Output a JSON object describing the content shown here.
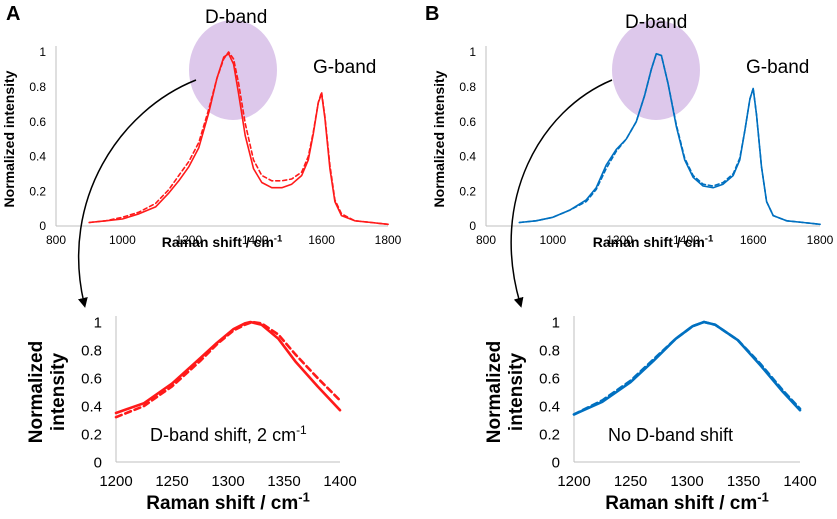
{
  "figure": {
    "panel_labels": [
      "A",
      "B"
    ],
    "colors": {
      "red": "#ff1a1a",
      "blue": "#0070c0",
      "highlight": "#d9c2e9"
    }
  },
  "chart_data": [
    {
      "id": "A-main",
      "type": "line",
      "title": "",
      "xlabel": "Raman shift / cm",
      "xlabel_sup": "-1",
      "ylabel": "Normalized intensity",
      "xlim": [
        800,
        1800
      ],
      "ylim": [
        0,
        1
      ],
      "xticks": [
        800,
        1000,
        1200,
        1400,
        1600,
        1800
      ],
      "yticks": [
        0,
        0.2,
        0.4,
        0.6,
        0.8,
        1
      ],
      "ytick_labels": [
        "0",
        "0.2",
        "0.4",
        "0.6",
        "0.8",
        "1"
      ],
      "grid": false,
      "annotations": {
        "d_band": "D-band",
        "g_band": "G-band"
      },
      "series": [
        {
          "name": "solid",
          "style": "solid",
          "x": [
            900,
            950,
            1000,
            1050,
            1100,
            1140,
            1170,
            1200,
            1230,
            1260,
            1285,
            1305,
            1320,
            1335,
            1350,
            1370,
            1395,
            1420,
            1450,
            1480,
            1510,
            1540,
            1560,
            1575,
            1590,
            1600,
            1610,
            1625,
            1640,
            1660,
            1700,
            1750,
            1800
          ],
          "y": [
            0.02,
            0.03,
            0.04,
            0.07,
            0.11,
            0.19,
            0.26,
            0.34,
            0.45,
            0.65,
            0.85,
            0.97,
            0.99,
            0.93,
            0.76,
            0.52,
            0.33,
            0.25,
            0.22,
            0.22,
            0.24,
            0.29,
            0.38,
            0.53,
            0.71,
            0.76,
            0.62,
            0.33,
            0.14,
            0.06,
            0.03,
            0.02,
            0.01
          ]
        },
        {
          "name": "dashed",
          "style": "dashed",
          "x": [
            900,
            950,
            1000,
            1050,
            1100,
            1140,
            1170,
            1200,
            1230,
            1260,
            1285,
            1305,
            1320,
            1335,
            1350,
            1370,
            1395,
            1420,
            1450,
            1480,
            1510,
            1540,
            1560,
            1575,
            1590,
            1600,
            1610,
            1625,
            1640,
            1660,
            1700,
            1750,
            1800
          ],
          "y": [
            0.02,
            0.03,
            0.05,
            0.08,
            0.13,
            0.21,
            0.29,
            0.37,
            0.48,
            0.67,
            0.85,
            0.96,
            1.0,
            0.96,
            0.82,
            0.59,
            0.38,
            0.29,
            0.26,
            0.26,
            0.27,
            0.31,
            0.4,
            0.54,
            0.71,
            0.77,
            0.63,
            0.35,
            0.15,
            0.07,
            0.03,
            0.02,
            0.01
          ]
        }
      ]
    },
    {
      "id": "A-inset",
      "type": "line",
      "title": "",
      "xlabel": "Raman shift / cm",
      "xlabel_sup": "-1",
      "ylabel": "Normalized intensity",
      "ylabel_lines": [
        "Normalized",
        "intensity"
      ],
      "xlim": [
        1200,
        1400
      ],
      "ylim": [
        0,
        1
      ],
      "xticks": [
        1200,
        1250,
        1300,
        1350,
        1400
      ],
      "yticks": [
        0,
        0.2,
        0.4,
        0.6,
        0.8,
        1
      ],
      "ytick_labels": [
        "0",
        "0.2",
        "0.4",
        "0.6",
        "0.8",
        "1"
      ],
      "grid": false,
      "annotation": "D-band shift, 2 cm",
      "annotation_sup": "-1",
      "series": [
        {
          "name": "solid",
          "style": "solid",
          "x": [
            1200,
            1225,
            1250,
            1275,
            1290,
            1305,
            1315,
            1320,
            1330,
            1345,
            1360,
            1380,
            1400
          ],
          "y": [
            0.35,
            0.42,
            0.56,
            0.74,
            0.85,
            0.95,
            0.99,
            1.0,
            0.98,
            0.88,
            0.72,
            0.54,
            0.37
          ]
        },
        {
          "name": "dashed",
          "style": "dashed",
          "x": [
            1200,
            1225,
            1250,
            1275,
            1290,
            1305,
            1315,
            1322,
            1330,
            1345,
            1360,
            1380,
            1400
          ],
          "y": [
            0.32,
            0.4,
            0.54,
            0.72,
            0.84,
            0.94,
            0.98,
            1.0,
            0.99,
            0.91,
            0.77,
            0.6,
            0.44
          ]
        }
      ]
    },
    {
      "id": "B-main",
      "type": "line",
      "title": "",
      "xlabel": "Raman shift / cm",
      "xlabel_sup": "-1",
      "ylabel": "Normalized intensity",
      "xlim": [
        800,
        1800
      ],
      "ylim": [
        0,
        1
      ],
      "xticks": [
        800,
        1000,
        1200,
        1400,
        1600,
        1800
      ],
      "yticks": [
        0,
        0.2,
        0.4,
        0.6,
        0.8,
        1
      ],
      "ytick_labels": [
        "0",
        "0.2",
        "0.4",
        "0.6",
        "0.8",
        "1"
      ],
      "grid": false,
      "annotations": {
        "d_band": "D-band",
        "g_band": "G-band"
      },
      "series": [
        {
          "name": "solid",
          "style": "solid",
          "x": [
            900,
            950,
            1000,
            1050,
            1100,
            1130,
            1160,
            1190,
            1220,
            1250,
            1275,
            1295,
            1310,
            1325,
            1345,
            1370,
            1395,
            1420,
            1450,
            1480,
            1510,
            1540,
            1560,
            1575,
            1590,
            1600,
            1610,
            1625,
            1640,
            1660,
            1700,
            1750,
            1800
          ],
          "y": [
            0.02,
            0.03,
            0.05,
            0.09,
            0.15,
            0.22,
            0.35,
            0.44,
            0.5,
            0.6,
            0.75,
            0.9,
            0.99,
            0.98,
            0.82,
            0.57,
            0.38,
            0.28,
            0.23,
            0.22,
            0.24,
            0.29,
            0.38,
            0.55,
            0.73,
            0.79,
            0.64,
            0.34,
            0.14,
            0.06,
            0.03,
            0.02,
            0.01
          ]
        },
        {
          "name": "dashed",
          "style": "dashed",
          "x": [
            900,
            950,
            1000,
            1050,
            1100,
            1130,
            1160,
            1190,
            1220,
            1250,
            1275,
            1295,
            1310,
            1325,
            1345,
            1370,
            1395,
            1420,
            1450,
            1480,
            1510,
            1540,
            1560,
            1575,
            1590,
            1600,
            1610,
            1625,
            1640,
            1660,
            1700,
            1750,
            1800
          ],
          "y": [
            0.02,
            0.03,
            0.05,
            0.09,
            0.14,
            0.21,
            0.33,
            0.43,
            0.5,
            0.6,
            0.75,
            0.9,
            0.99,
            0.98,
            0.82,
            0.58,
            0.39,
            0.29,
            0.24,
            0.23,
            0.25,
            0.3,
            0.39,
            0.55,
            0.73,
            0.79,
            0.64,
            0.34,
            0.14,
            0.06,
            0.03,
            0.02,
            0.01
          ]
        }
      ]
    },
    {
      "id": "B-inset",
      "type": "line",
      "title": "",
      "xlabel": "Raman shift / cm",
      "xlabel_sup": "-1",
      "ylabel": "Normalized intensity",
      "ylabel_lines": [
        "Normalized",
        "intensity"
      ],
      "xlim": [
        1200,
        1400
      ],
      "ylim": [
        0,
        1
      ],
      "xticks": [
        1200,
        1250,
        1300,
        1350,
        1400
      ],
      "yticks": [
        0,
        0.2,
        0.4,
        0.6,
        0.8,
        1
      ],
      "ytick_labels": [
        "0",
        "0.2",
        "0.4",
        "0.6",
        "0.8",
        "1"
      ],
      "grid": false,
      "annotation": "No D-band shift",
      "annotation_sup": "",
      "series": [
        {
          "name": "solid",
          "style": "solid",
          "x": [
            1200,
            1225,
            1250,
            1270,
            1290,
            1305,
            1315,
            1325,
            1345,
            1365,
            1385,
            1400
          ],
          "y": [
            0.34,
            0.43,
            0.57,
            0.72,
            0.88,
            0.97,
            1.0,
            0.98,
            0.87,
            0.69,
            0.5,
            0.37
          ]
        },
        {
          "name": "dashed",
          "style": "dashed",
          "x": [
            1200,
            1225,
            1250,
            1270,
            1290,
            1305,
            1315,
            1325,
            1345,
            1365,
            1385,
            1400
          ],
          "y": [
            0.34,
            0.44,
            0.58,
            0.73,
            0.88,
            0.97,
            1.0,
            0.98,
            0.87,
            0.7,
            0.51,
            0.38
          ]
        }
      ]
    }
  ]
}
